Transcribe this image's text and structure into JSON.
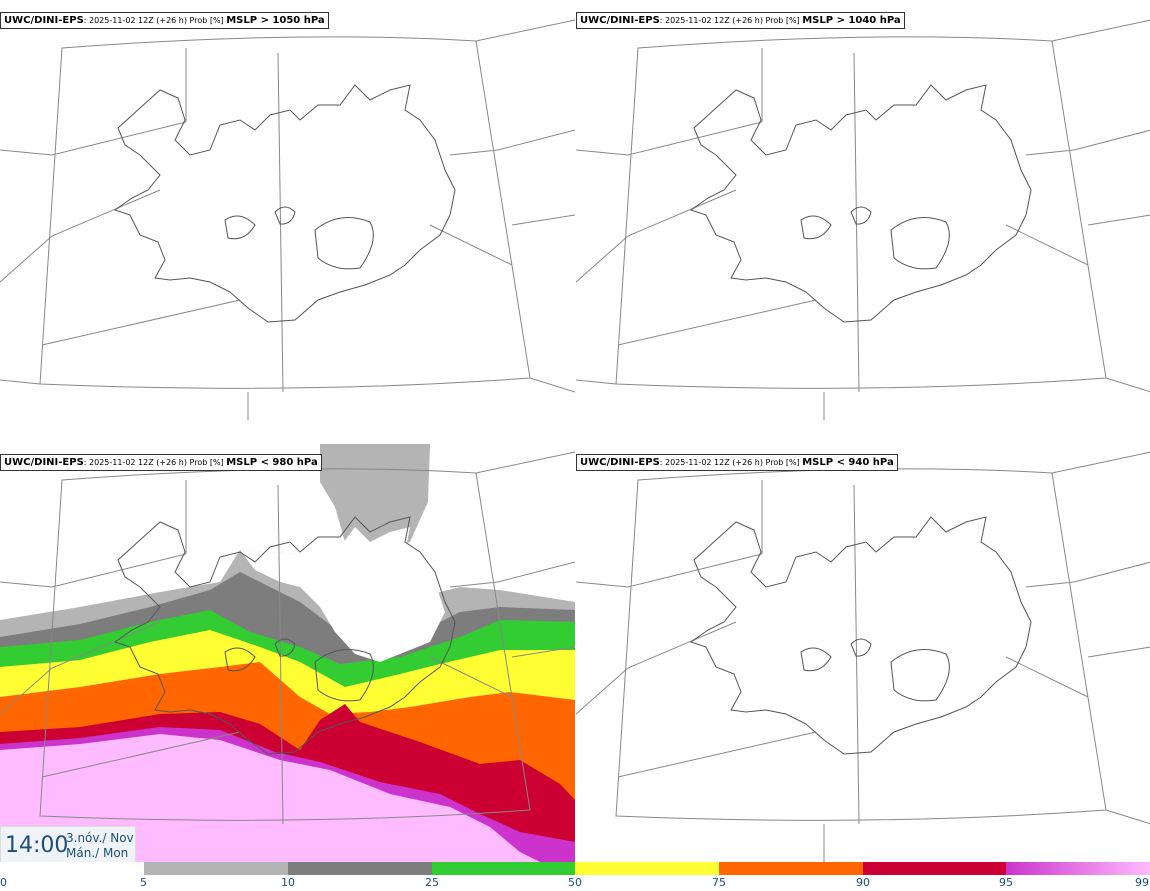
{
  "panels": [
    {
      "model": "UWC/DINI-EPS",
      "meta": ": 2025-11-02 12Z (+26 h) Prob [%] ",
      "threshold": "MSLP > 1050 hPa"
    },
    {
      "model": "UWC/DINI-EPS",
      "meta": ": 2025-11-02 12Z (+26 h) Prob [%] ",
      "threshold": "MSLP > 1040 hPa"
    },
    {
      "model": "UWC/DINI-EPS",
      "meta": ": 2025-11-02 12Z (+26 h) Prob [%] ",
      "threshold": "MSLP < 980 hPa"
    },
    {
      "model": "UWC/DINI-EPS",
      "meta": ": 2025-11-02 12Z (+26 h) Prob [%] ",
      "threshold": "MSLP < 940 hPa"
    }
  ],
  "time": {
    "clock": "14:00",
    "date": "3.nóv./ Nov",
    "day": "Mán./ Mon"
  },
  "legend": {
    "ticks": [
      "0",
      "5",
      "10",
      "25",
      "50",
      "75",
      "90",
      "95",
      "99"
    ],
    "colors": [
      "#ffffff",
      "#b4b4b4",
      "#7d7d7d",
      "#33cc33",
      "#ffff33",
      "#ff6600",
      "#cc0033",
      "#cc33cc",
      "#ffbbff"
    ]
  }
}
